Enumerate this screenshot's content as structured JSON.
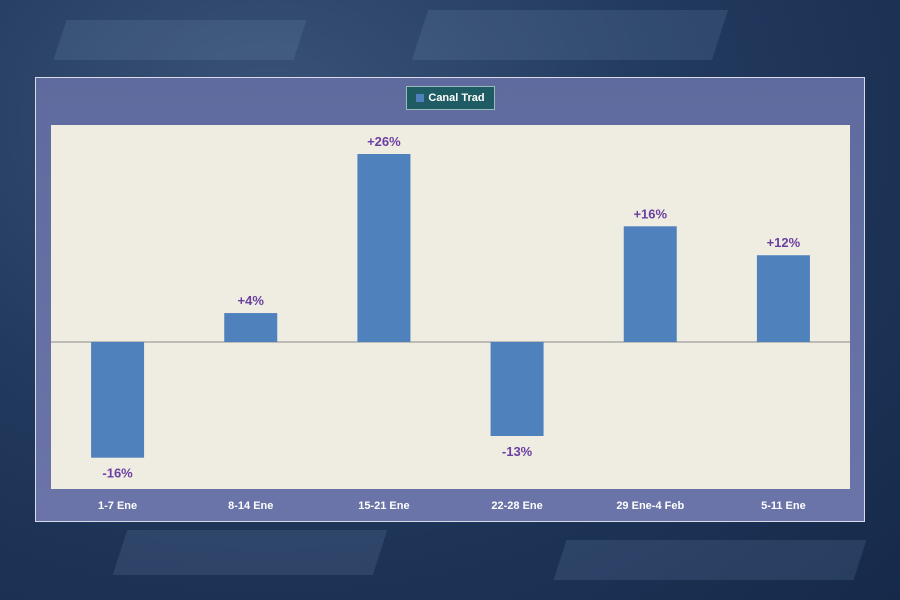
{
  "chart_data": {
    "type": "bar",
    "categories": [
      "1-7 Ene",
      "8-14 Ene",
      "15-21 Ene",
      "22-28 Ene",
      "29 Ene-4 Feb",
      "5-11 Ene"
    ],
    "series": [
      {
        "name": "Canal Trad",
        "values": [
          -16,
          4,
          26,
          -13,
          16,
          12
        ]
      }
    ],
    "data_labels": [
      "-16%",
      "+4%",
      "+26%",
      "-13%",
      "+16%",
      "+12%"
    ],
    "legend": "top-center",
    "bar_color": "#4f81bd",
    "label_color": "#6b3fa0",
    "ylim": [
      -20,
      30
    ],
    "grid": false
  }
}
